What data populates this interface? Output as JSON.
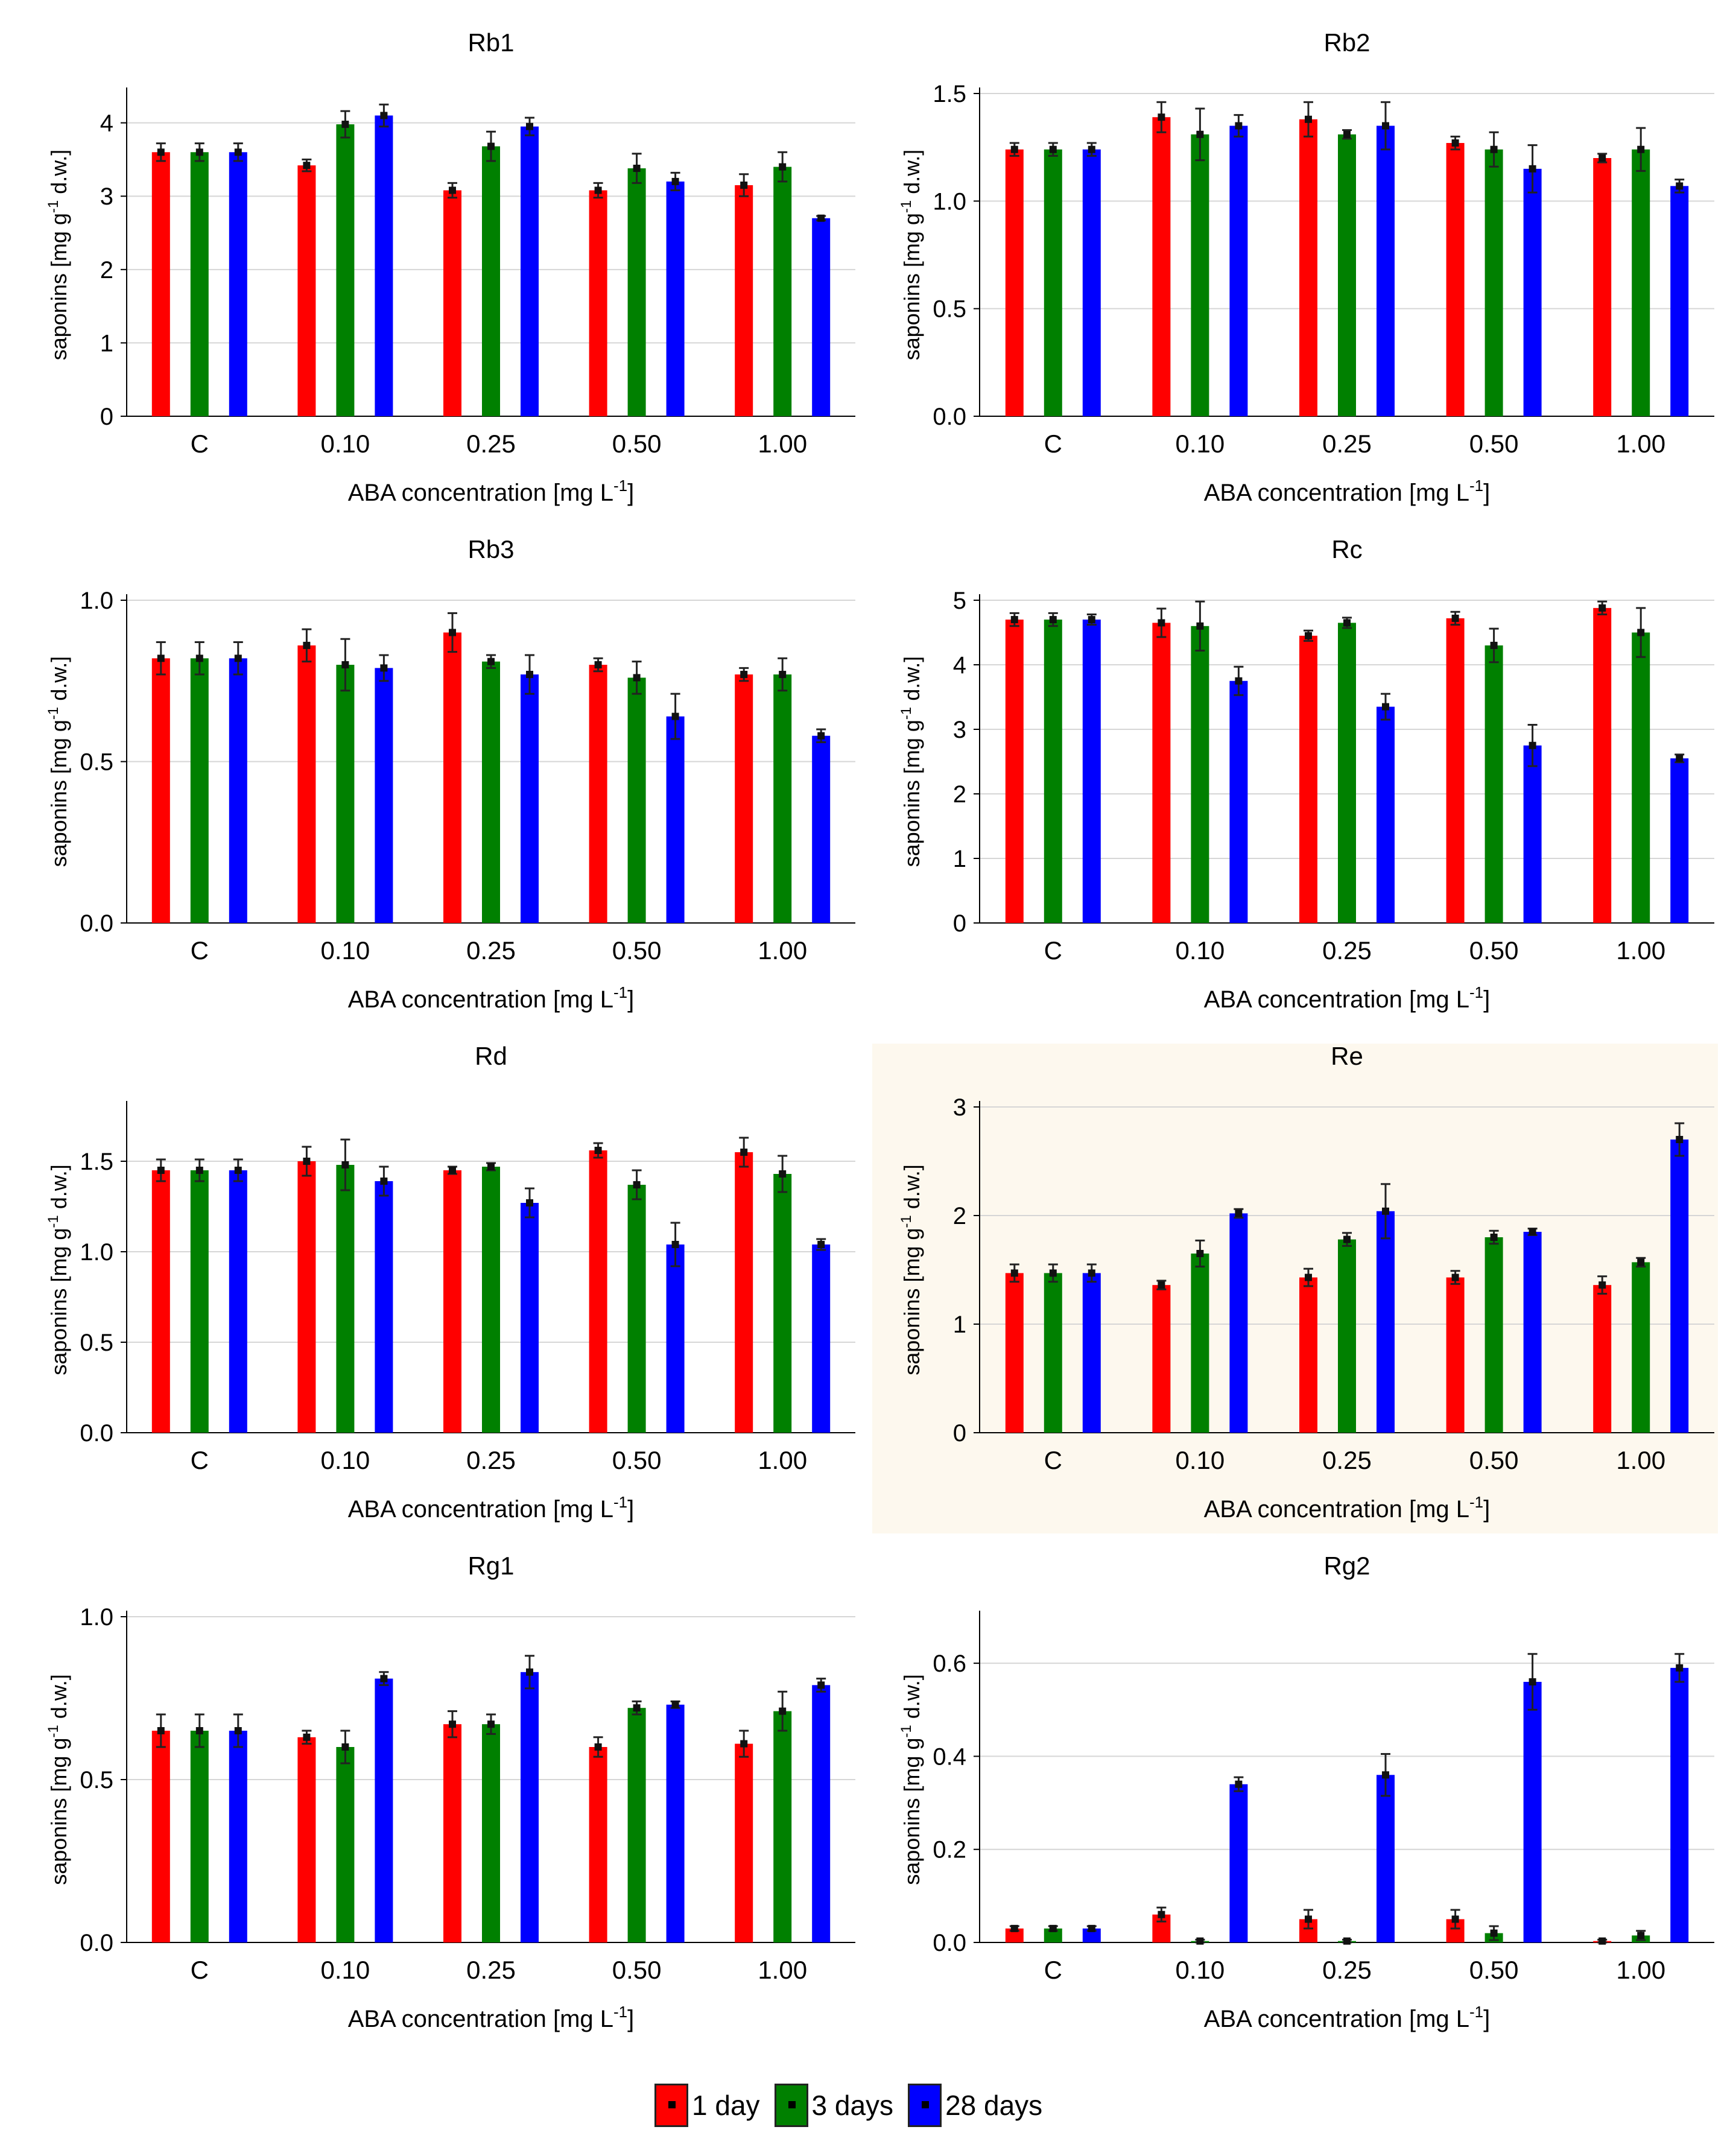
{
  "colors": {
    "day1": "#ff0000",
    "day3": "#008000",
    "day28": "#0000ff"
  },
  "legend": [
    {
      "label": "1 day",
      "color": "#ff0000"
    },
    {
      "label": "3 days",
      "color": "#008000"
    },
    {
      "label": "28 days",
      "color": "#0000ff"
    }
  ],
  "chart_data": [
    {
      "type": "bar",
      "title": "Rb1",
      "xlabel": "ABA concentration [mg L",
      "xlabel_sup": "-1",
      "xlabel_end": "]",
      "ylabel": "saponins [mg g",
      "ylabel_sup": "-1",
      "ylabel_end": " d.w.]",
      "categories": [
        "C",
        "0.10",
        "0.25",
        "0.50",
        "1.00"
      ],
      "ylim": [
        0,
        4.4
      ],
      "yticks": [
        "0",
        "1",
        "2",
        "3",
        "4"
      ],
      "ytick_values": [
        0,
        1,
        2,
        3,
        4
      ],
      "series": [
        {
          "name": "1 day",
          "values": [
            3.6,
            3.42,
            3.08,
            3.08,
            3.15
          ],
          "errors": [
            0.12,
            0.08,
            0.1,
            0.1,
            0.15
          ]
        },
        {
          "name": "3 days",
          "values": [
            3.6,
            3.98,
            3.68,
            3.38,
            3.4
          ],
          "errors": [
            0.12,
            0.18,
            0.2,
            0.2,
            0.2
          ]
        },
        {
          "name": "28 days",
          "values": [
            3.6,
            4.1,
            3.95,
            3.2,
            2.7
          ],
          "errors": [
            0.12,
            0.15,
            0.12,
            0.12,
            0.03
          ]
        }
      ]
    },
    {
      "type": "bar",
      "title": "Rb2",
      "xlabel": "ABA concentration [mg L",
      "xlabel_sup": "-1",
      "xlabel_end": "]",
      "ylabel": "saponins [mg g",
      "ylabel_sup": "-1",
      "ylabel_end": " d.w.]",
      "categories": [
        "C",
        "0.10",
        "0.25",
        "0.50",
        "1.00"
      ],
      "ylim": [
        0,
        1.5
      ],
      "yticks": [
        "0.0",
        "0.5",
        "1.0",
        "1.5"
      ],
      "ytick_values": [
        0,
        0.5,
        1.0,
        1.5
      ],
      "series": [
        {
          "name": "1 day",
          "values": [
            1.24,
            1.39,
            1.38,
            1.27,
            1.2
          ],
          "errors": [
            0.03,
            0.07,
            0.08,
            0.03,
            0.02
          ]
        },
        {
          "name": "3 days",
          "values": [
            1.24,
            1.31,
            1.31,
            1.24,
            1.24
          ],
          "errors": [
            0.03,
            0.12,
            0.02,
            0.08,
            0.1
          ]
        },
        {
          "name": "28 days",
          "values": [
            1.24,
            1.35,
            1.35,
            1.15,
            1.07
          ],
          "errors": [
            0.03,
            0.05,
            0.11,
            0.11,
            0.03
          ]
        }
      ]
    },
    {
      "type": "bar",
      "title": "Rb3",
      "xlabel": "ABA concentration [mg L",
      "xlabel_sup": "-1",
      "xlabel_end": "]",
      "ylabel": "saponins [mg g",
      "ylabel_sup": "-1",
      "ylabel_end": " d.w.]",
      "categories": [
        "C",
        "0.10",
        "0.25",
        "0.50",
        "1.00"
      ],
      "ylim": [
        0,
        1.0
      ],
      "yticks": [
        "0.0",
        "0.5",
        "1.0"
      ],
      "ytick_values": [
        0,
        0.5,
        1.0
      ],
      "series": [
        {
          "name": "1 day",
          "values": [
            0.82,
            0.86,
            0.9,
            0.8,
            0.77
          ],
          "errors": [
            0.05,
            0.05,
            0.06,
            0.02,
            0.02
          ]
        },
        {
          "name": "3 days",
          "values": [
            0.82,
            0.8,
            0.81,
            0.76,
            0.77
          ],
          "errors": [
            0.05,
            0.08,
            0.02,
            0.05,
            0.05
          ]
        },
        {
          "name": "28 days",
          "values": [
            0.82,
            0.79,
            0.77,
            0.64,
            0.58
          ],
          "errors": [
            0.05,
            0.04,
            0.06,
            0.07,
            0.02
          ]
        }
      ]
    },
    {
      "type": "bar",
      "title": "Rc",
      "xlabel": "ABA concentration [mg L",
      "xlabel_sup": "-1",
      "xlabel_end": "]",
      "ylabel": "saponins [mg g",
      "ylabel_sup": "-1",
      "ylabel_end": " d.w.]",
      "categories": [
        "C",
        "0.10",
        "0.25",
        "0.50",
        "1.00"
      ],
      "ylim": [
        0,
        5
      ],
      "yticks": [
        "0",
        "1",
        "2",
        "3",
        "4",
        "5"
      ],
      "ytick_values": [
        0,
        1,
        2,
        3,
        4,
        5
      ],
      "series": [
        {
          "name": "1 day",
          "values": [
            4.7,
            4.65,
            4.45,
            4.72,
            4.88
          ],
          "errors": [
            0.1,
            0.22,
            0.08,
            0.1,
            0.1
          ]
        },
        {
          "name": "3 days",
          "values": [
            4.7,
            4.6,
            4.65,
            4.3,
            4.5
          ],
          "errors": [
            0.1,
            0.38,
            0.08,
            0.26,
            0.38
          ]
        },
        {
          "name": "28 days",
          "values": [
            4.7,
            3.75,
            3.35,
            2.75,
            2.55
          ],
          "errors": [
            0.08,
            0.22,
            0.2,
            0.32,
            0.06
          ]
        }
      ]
    },
    {
      "type": "bar",
      "title": "Rd",
      "xlabel": "ABA concentration [mg L",
      "xlabel_sup": "-1",
      "xlabel_end": "]",
      "ylabel": "saponins [mg g",
      "ylabel_sup": "-1",
      "ylabel_end": " d.w.]",
      "categories": [
        "C",
        "0.10",
        "0.25",
        "0.50",
        "1.00"
      ],
      "ylim": [
        0,
        1.8
      ],
      "yticks": [
        "0.0",
        "0.5",
        "1.0",
        "1.5"
      ],
      "ytick_values": [
        0,
        0.5,
        1.0,
        1.5
      ],
      "series": [
        {
          "name": "1 day",
          "values": [
            1.45,
            1.5,
            1.45,
            1.56,
            1.55
          ],
          "errors": [
            0.06,
            0.08,
            0.02,
            0.04,
            0.08
          ]
        },
        {
          "name": "3 days",
          "values": [
            1.45,
            1.48,
            1.47,
            1.37,
            1.43
          ],
          "errors": [
            0.06,
            0.14,
            0.02,
            0.08,
            0.1
          ]
        },
        {
          "name": "28 days",
          "values": [
            1.45,
            1.39,
            1.27,
            1.04,
            1.04
          ],
          "errors": [
            0.06,
            0.08,
            0.08,
            0.12,
            0.03
          ]
        }
      ]
    },
    {
      "type": "bar",
      "title": "Re",
      "xlabel": "ABA concentration [mg L",
      "xlabel_sup": "-1",
      "xlabel_end": "]",
      "ylabel": "saponins [mg g",
      "ylabel_sup": "-1",
      "ylabel_end": " d.w.]",
      "categories": [
        "C",
        "0.10",
        "0.25",
        "0.50",
        "1.00"
      ],
      "ylim": [
        0,
        3
      ],
      "yticks": [
        "0",
        "1",
        "2",
        "3"
      ],
      "ytick_values": [
        0,
        1,
        2,
        3
      ],
      "series": [
        {
          "name": "1 day",
          "values": [
            1.47,
            1.36,
            1.43,
            1.43,
            1.36
          ],
          "errors": [
            0.08,
            0.04,
            0.08,
            0.06,
            0.08
          ]
        },
        {
          "name": "3 days",
          "values": [
            1.47,
            1.65,
            1.78,
            1.8,
            1.57
          ],
          "errors": [
            0.08,
            0.12,
            0.06,
            0.06,
            0.04
          ]
        },
        {
          "name": "28 days",
          "values": [
            1.47,
            2.02,
            2.04,
            1.85,
            2.7
          ],
          "errors": [
            0.08,
            0.04,
            0.25,
            0.03,
            0.15
          ]
        }
      ]
    },
    {
      "type": "bar",
      "title": "Rg1",
      "xlabel": "ABA concentration [mg L",
      "xlabel_sup": "-1",
      "xlabel_end": "]",
      "ylabel": "saponins [mg g",
      "ylabel_sup": "-1",
      "ylabel_end": " d.w.]",
      "categories": [
        "C",
        "0.10",
        "0.25",
        "0.50",
        "1.00"
      ],
      "ylim": [
        0,
        1.0
      ],
      "yticks": [
        "0.0",
        "0.5",
        "1.0"
      ],
      "ytick_values": [
        0,
        0.5,
        1.0
      ],
      "series": [
        {
          "name": "1 day",
          "values": [
            0.65,
            0.63,
            0.67,
            0.6,
            0.61
          ],
          "errors": [
            0.05,
            0.02,
            0.04,
            0.03,
            0.04
          ]
        },
        {
          "name": "3 days",
          "values": [
            0.65,
            0.6,
            0.67,
            0.72,
            0.71
          ],
          "errors": [
            0.05,
            0.05,
            0.03,
            0.02,
            0.06
          ]
        },
        {
          "name": "28 days",
          "values": [
            0.65,
            0.81,
            0.83,
            0.73,
            0.79
          ],
          "errors": [
            0.05,
            0.02,
            0.05,
            0.01,
            0.02
          ]
        }
      ]
    },
    {
      "type": "bar",
      "title": "Rg2",
      "xlabel": "ABA concentration [mg L",
      "xlabel_sup": "-1",
      "xlabel_end": "]",
      "ylabel": "saponins [mg g",
      "ylabel_sup": "-1",
      "ylabel_end": " d.w.]",
      "categories": [
        "C",
        "0.10",
        "0.25",
        "0.50",
        "1.00"
      ],
      "ylim": [
        0,
        0.7
      ],
      "yticks": [
        "0.0",
        "0.2",
        "0.4",
        "0.6"
      ],
      "ytick_values": [
        0,
        0.2,
        0.4,
        0.6
      ],
      "series": [
        {
          "name": "1 day",
          "values": [
            0.03,
            0.06,
            0.05,
            0.05,
            0.003
          ],
          "errors": [
            0.005,
            0.015,
            0.02,
            0.02,
            0.003
          ]
        },
        {
          "name": "3 days",
          "values": [
            0.03,
            0.003,
            0.003,
            0.02,
            0.015
          ],
          "errors": [
            0.005,
            0.003,
            0.003,
            0.015,
            0.01
          ]
        },
        {
          "name": "28 days",
          "values": [
            0.03,
            0.34,
            0.36,
            0.56,
            0.59
          ],
          "errors": [
            0.005,
            0.015,
            0.045,
            0.06,
            0.03
          ]
        }
      ]
    }
  ]
}
